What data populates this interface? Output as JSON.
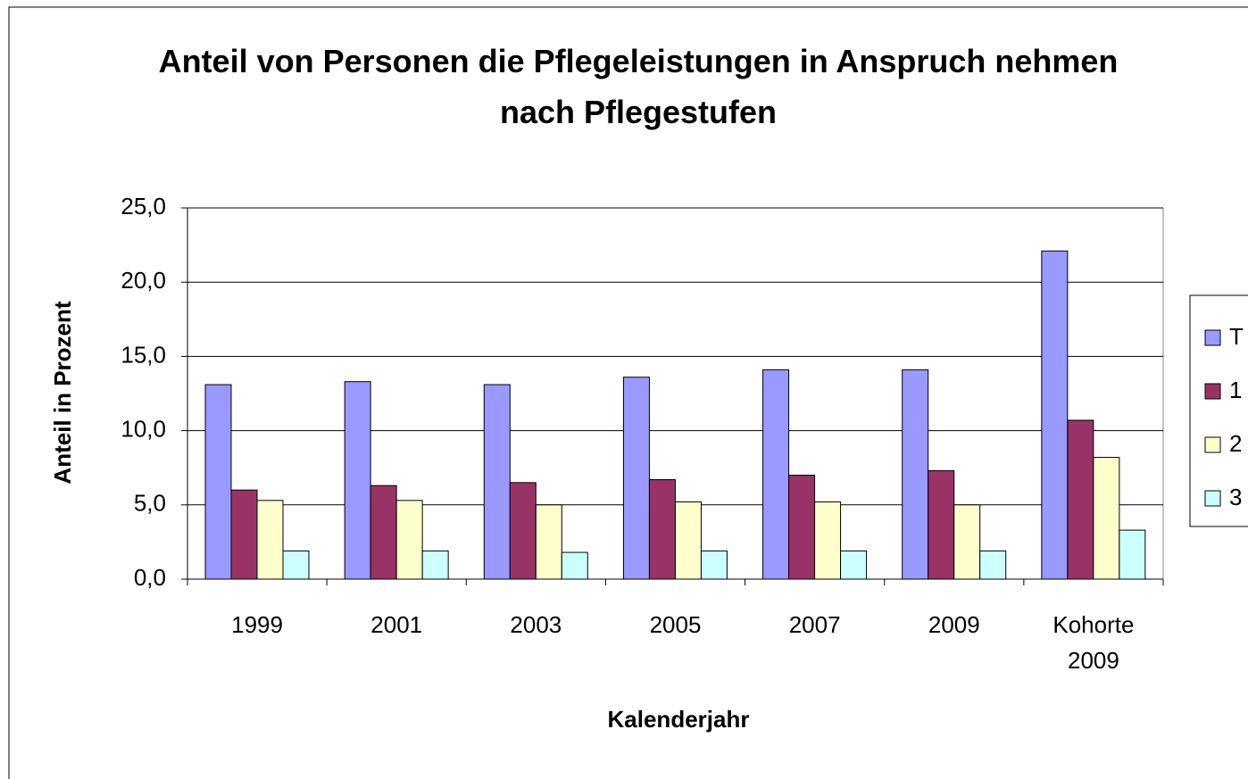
{
  "chart_data": {
    "type": "bar",
    "title": "Anteil von Personen die Pflegeleistungen in Anspruch nehmen  nach Pflegestufen",
    "xlabel": "Kalenderjahr",
    "ylabel": "Anteil in Prozent",
    "categories": [
      "1999",
      "2001",
      "2003",
      "2005",
      "2007",
      "2009",
      "Kohorte 2009"
    ],
    "series": [
      {
        "name": "T",
        "color": "#9999ff",
        "values": [
          13.1,
          13.3,
          13.1,
          13.6,
          14.1,
          14.1,
          22.1
        ]
      },
      {
        "name": "1",
        "color": "#993366",
        "values": [
          6.0,
          6.3,
          6.5,
          6.7,
          7.0,
          7.3,
          10.7
        ]
      },
      {
        "name": "2",
        "color": "#ffffcc",
        "values": [
          5.3,
          5.3,
          5.0,
          5.2,
          5.2,
          5.0,
          8.2
        ]
      },
      {
        "name": "3",
        "color": "#ccffff",
        "values": [
          1.9,
          1.9,
          1.8,
          1.9,
          1.9,
          1.9,
          3.3
        ]
      }
    ],
    "ylim": [
      0,
      25
    ],
    "yticks": [
      {
        "value": 0,
        "label": "0,0"
      },
      {
        "value": 5,
        "label": "5,0"
      },
      {
        "value": 10,
        "label": "10,0"
      },
      {
        "value": 15,
        "label": "15,0"
      },
      {
        "value": 20,
        "label": "20,0"
      },
      {
        "value": 25,
        "label": "25,0"
      }
    ],
    "grid": true,
    "legend": "right"
  }
}
